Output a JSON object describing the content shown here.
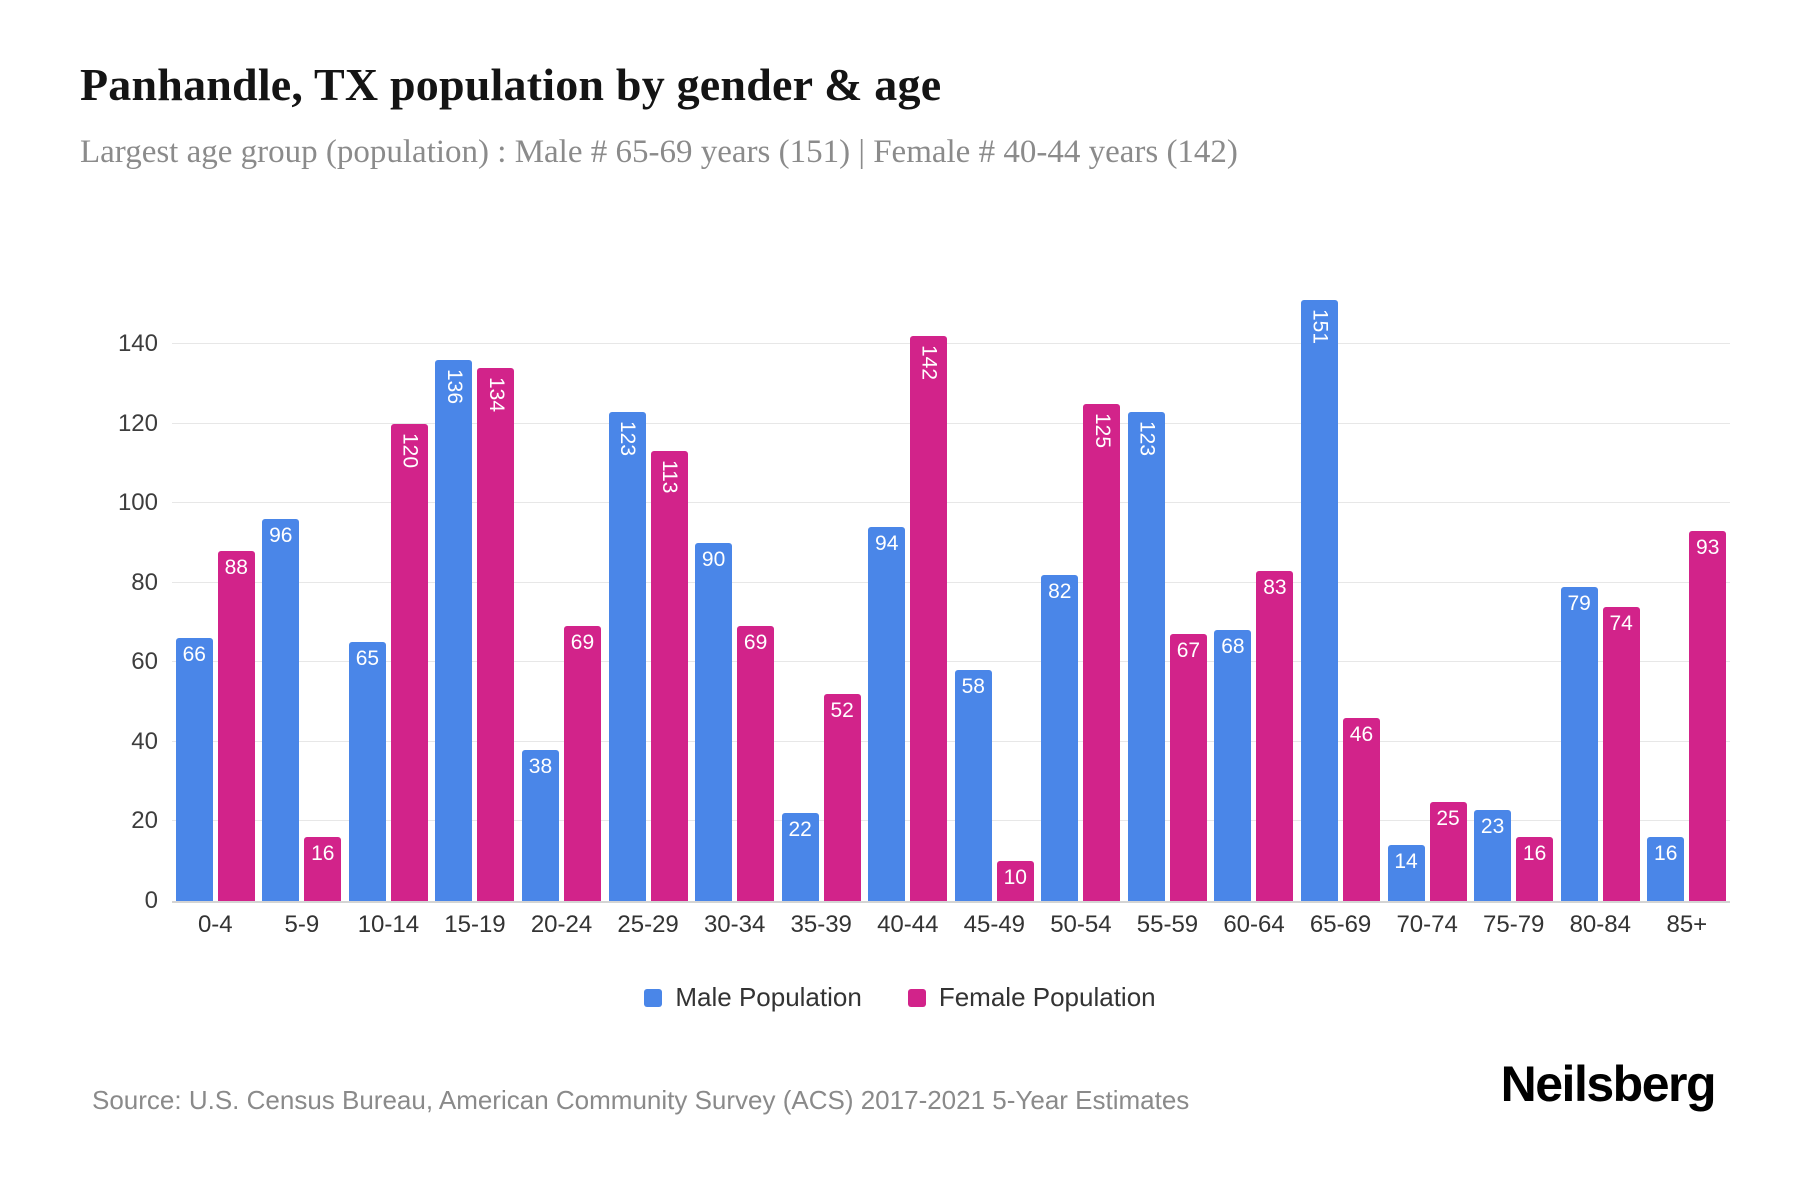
{
  "header": {
    "title": "Panhandle, TX population by gender & age",
    "subtitle": "Largest age group (population) : Male # 65-69 years (151) | Female # 40-44 years (142)"
  },
  "chart_data": {
    "type": "bar",
    "title": "Panhandle, TX population by gender & age",
    "categories": [
      "0-4",
      "5-9",
      "10-14",
      "15-19",
      "20-24",
      "25-29",
      "30-34",
      "35-39",
      "40-44",
      "45-49",
      "50-54",
      "55-59",
      "60-64",
      "65-69",
      "70-74",
      "75-79",
      "80-84",
      "85+"
    ],
    "series": [
      {
        "name": "Male Population",
        "color": "#4a86e8",
        "values": [
          66,
          96,
          65,
          136,
          38,
          123,
          90,
          22,
          94,
          58,
          82,
          123,
          68,
          151,
          14,
          23,
          79,
          16
        ]
      },
      {
        "name": "Female Population",
        "color": "#d2238a",
        "values": [
          88,
          16,
          120,
          134,
          69,
          113,
          69,
          52,
          142,
          10,
          125,
          67,
          83,
          46,
          25,
          16,
          74,
          93
        ]
      }
    ],
    "xlabel": "",
    "ylabel": "",
    "ylim": [
      0,
      140
    ],
    "ytick_step": 20,
    "grid": true,
    "legend_position": "bottom",
    "value_label_style": "white, inside bar top, rotated vertical when value >= 100"
  },
  "footer": {
    "source": "Source: U.S. Census Bureau, American Community Survey (ACS) 2017-2021 5-Year Estimates",
    "brand": "Neilsberg"
  }
}
